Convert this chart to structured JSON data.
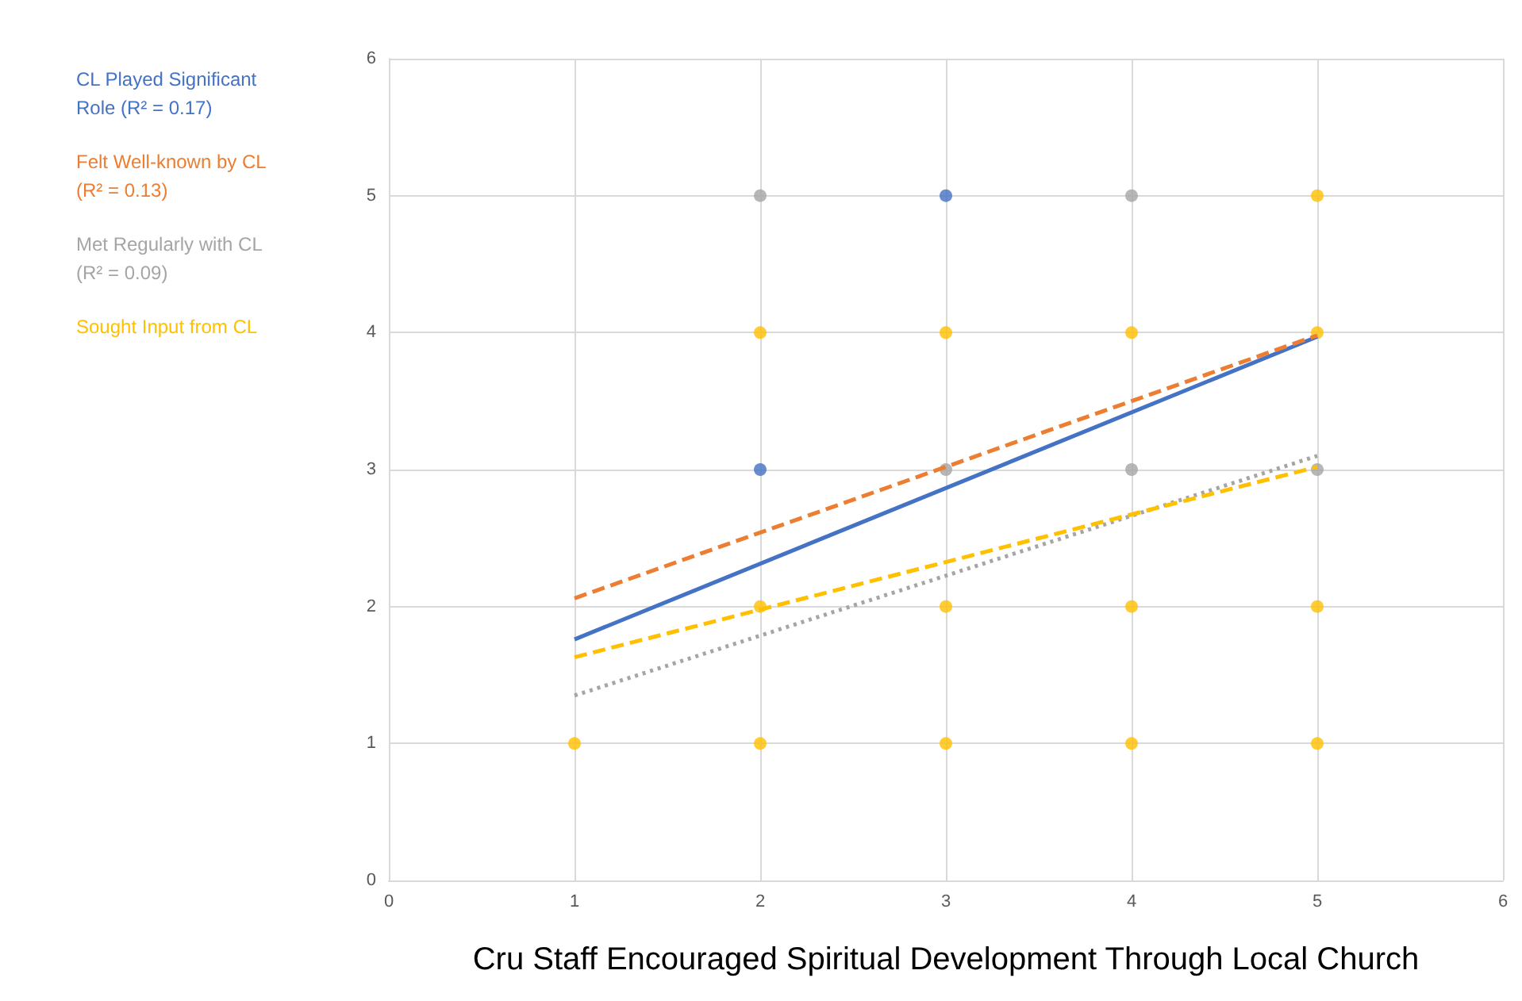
{
  "chart_data": {
    "type": "scatter",
    "xlabel": "Cru Staff Encouraged Spiritual Development Through Local Church",
    "xlim": [
      0,
      6
    ],
    "xticks": [
      0,
      1,
      2,
      3,
      4,
      5,
      6
    ],
    "ylim": [
      0,
      6
    ],
    "yticks": [
      0,
      1,
      2,
      3,
      4,
      5,
      6
    ],
    "grid": true,
    "legend": "left",
    "marker": "circle",
    "series": [
      {
        "color": "#4472c4",
        "x": [
          2,
          3
        ],
        "values": [
          3,
          5
        ]
      },
      {
        "color": "#a5a5a5",
        "x": [
          2,
          3,
          4,
          4,
          5
        ],
        "values": [
          5,
          3,
          5,
          3,
          3
        ]
      },
      {
        "color": "#ffc000",
        "x": [
          1,
          2,
          3,
          4,
          5,
          2,
          3,
          4,
          5,
          2,
          3,
          4,
          5,
          5
        ],
        "values": [
          1,
          1,
          1,
          1,
          1,
          2,
          2,
          2,
          2,
          4,
          4,
          4,
          4,
          5
        ]
      },
      {
        "type": "line",
        "name": "CL Played Significant Role (R² = 0.17)",
        "color": "#4472c4",
        "line_style": "solid",
        "marker": "none",
        "x": [
          1,
          5
        ],
        "values": [
          1.76,
          3.97
        ]
      },
      {
        "type": "line",
        "name": "Felt Well-known by CL (R² = 0.13)",
        "color": "#ed7d31",
        "line_style": "dashed",
        "marker": "none",
        "x": [
          1,
          5
        ],
        "values": [
          2.06,
          3.98
        ]
      },
      {
        "type": "line",
        "name": "Met Regularly with CL (R² = 0.09)",
        "color": "#a5a5a5",
        "line_style": "dotted",
        "marker": "none",
        "x": [
          1,
          5
        ],
        "values": [
          1.35,
          3.1
        ]
      },
      {
        "type": "line",
        "name": "Sought Input from CL",
        "color": "#ffc000",
        "line_style": "dashed",
        "marker": "none",
        "x": [
          1,
          5
        ],
        "values": [
          1.63,
          3.02
        ]
      }
    ]
  }
}
